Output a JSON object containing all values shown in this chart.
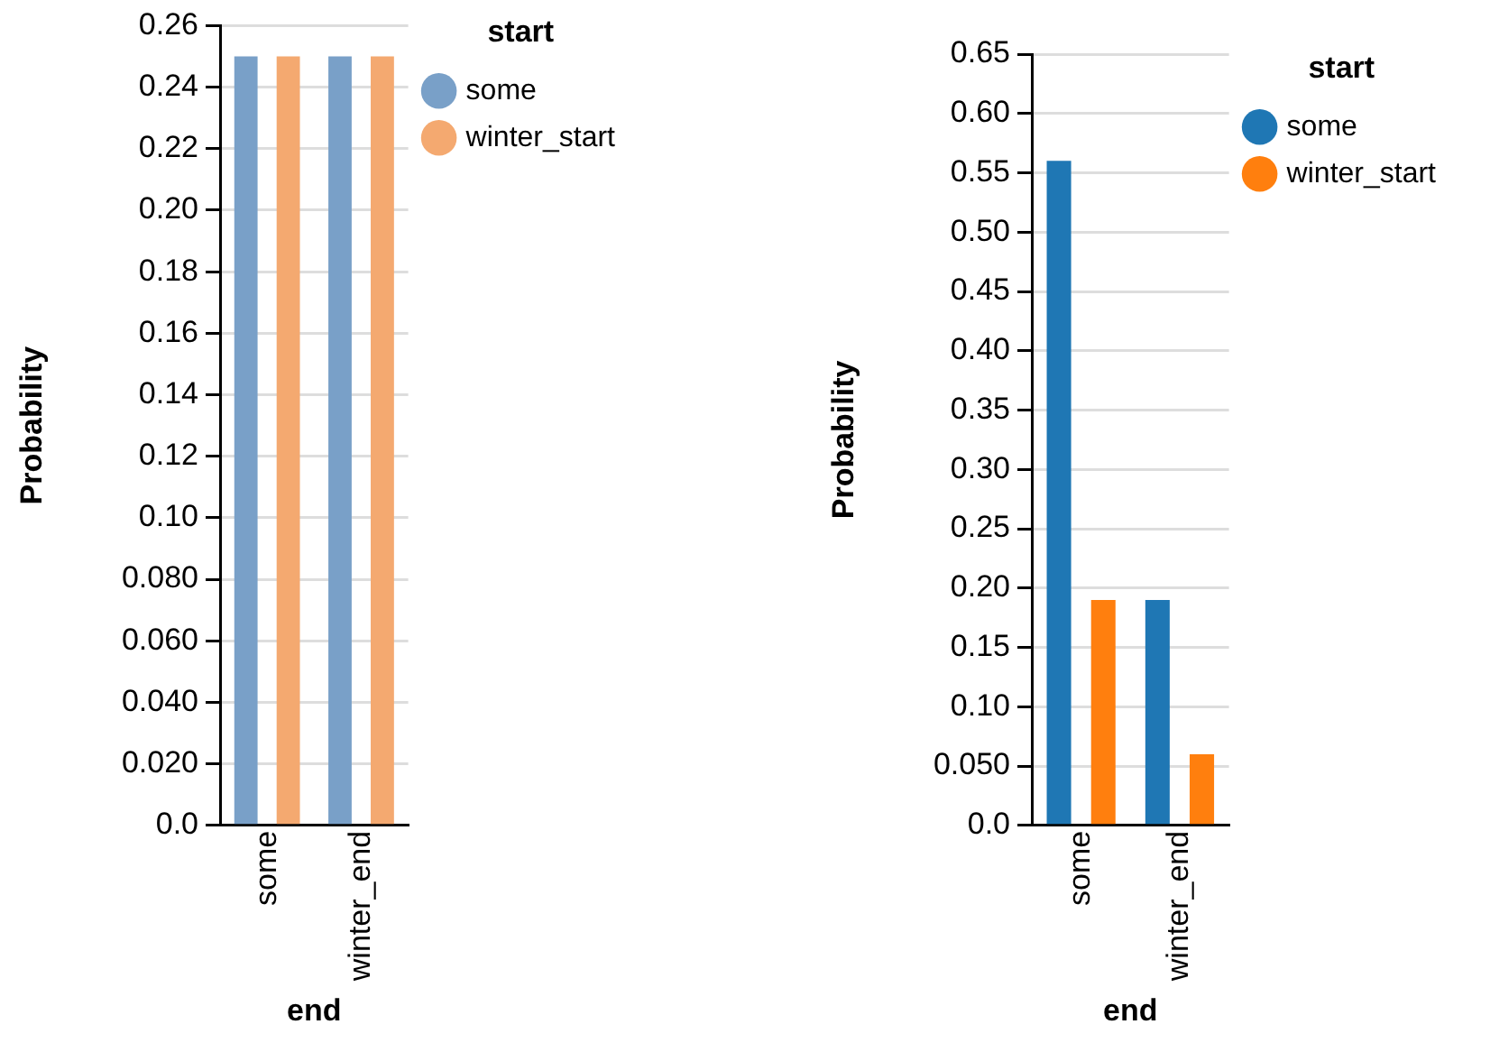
{
  "chart_data": [
    {
      "type": "bar",
      "xlabel": "end",
      "ylabel": "Probability",
      "legend_title": "start",
      "categories": [
        "some",
        "winter_end"
      ],
      "series": [
        {
          "name": "some",
          "color": "#79a0c8",
          "values": [
            0.25,
            0.25
          ]
        },
        {
          "name": "winter_start",
          "color": "#f4a970",
          "values": [
            0.25,
            0.25
          ]
        }
      ],
      "ylim": [
        0,
        0.26
      ],
      "yticks": [
        {
          "value": 0,
          "label": "0.0"
        },
        {
          "value": 0.02,
          "label": "0.020"
        },
        {
          "value": 0.04,
          "label": "0.040"
        },
        {
          "value": 0.06,
          "label": "0.060"
        },
        {
          "value": 0.08,
          "label": "0.080"
        },
        {
          "value": 0.1,
          "label": "0.10"
        },
        0.12,
        0.14,
        0.16,
        0.18,
        {
          "value": 0.2,
          "label": "0.20"
        },
        0.22,
        0.24,
        0.26
      ],
      "grid": "y",
      "legend": "top right"
    },
    {
      "type": "bar",
      "xlabel": "end",
      "ylabel": "Probability",
      "legend_title": "start",
      "categories": [
        "some",
        "winter_end"
      ],
      "series": [
        {
          "name": "some",
          "color": "#1f77b4",
          "values": [
            0.56,
            0.19
          ]
        },
        {
          "name": "winter_start",
          "color": "#ff7f0e",
          "values": [
            0.19,
            0.06
          ]
        }
      ],
      "ylim": [
        0,
        0.65
      ],
      "yticks": [
        {
          "value": 0,
          "label": "0.0"
        },
        {
          "value": 0.05,
          "label": "0.050"
        },
        {
          "value": 0.1,
          "label": "0.10"
        },
        0.15,
        {
          "value": 0.2,
          "label": "0.20"
        },
        0.25,
        {
          "value": 0.3,
          "label": "0.30"
        },
        0.35,
        {
          "value": 0.4,
          "label": "0.40"
        },
        0.45,
        {
          "value": 0.5,
          "label": "0.50"
        },
        0.55,
        {
          "value": 0.6,
          "label": "0.60"
        },
        0.65
      ],
      "grid": "y",
      "legend": "top right"
    }
  ]
}
